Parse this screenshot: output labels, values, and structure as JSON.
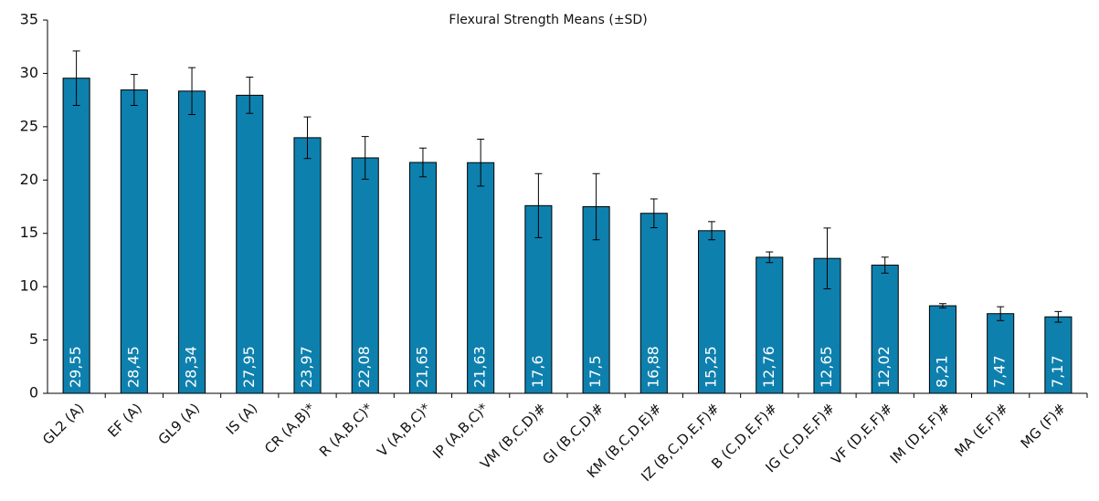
{
  "chart_data": {
    "type": "bar",
    "title": "Flexural Strength Means (±SD)",
    "categories": [
      "GL2 (A)",
      "EF (A)",
      "GL9 (A)",
      "IS (A)",
      "CR (A,B)*",
      "R (A,B,C)*",
      "V (A,B,C)*",
      "IP (A,B,C)*",
      "VM (B,C,D)#",
      "GI (B,C,D)#",
      "KM (B,C,D,E)#",
      "IZ (B,C,D,E,F)#",
      "B (C,D,E,F)#",
      "IG (C,D,E,F)#",
      "VF (D,E,F)#",
      "IM (D,E,F)#",
      "MA (E,F)#",
      "MG (F)#"
    ],
    "values": [
      29.55,
      28.45,
      28.34,
      27.95,
      23.97,
      22.08,
      21.65,
      21.63,
      17.6,
      17.5,
      16.88,
      15.25,
      12.76,
      12.65,
      12.02,
      8.21,
      7.47,
      7.17
    ],
    "value_labels": [
      "29,55",
      "28,45",
      "28,34",
      "27,95",
      "23,97",
      "22,08",
      "21,65",
      "21,63",
      "17,6",
      "17,5",
      "16,88",
      "15,25",
      "12,76",
      "12,65",
      "12,02",
      "8,21",
      "7,47",
      "7,17"
    ],
    "errors": [
      2.55,
      1.45,
      2.2,
      1.7,
      1.95,
      2.0,
      1.35,
      2.2,
      3.0,
      3.1,
      1.35,
      0.85,
      0.5,
      2.85,
      0.75,
      0.2,
      0.65,
      0.5
    ],
    "color": "#0e80ae",
    "ylim": [
      0,
      35
    ],
    "yticks": [
      0,
      5,
      10,
      15,
      20,
      25,
      30,
      35
    ],
    "grid": false
  }
}
